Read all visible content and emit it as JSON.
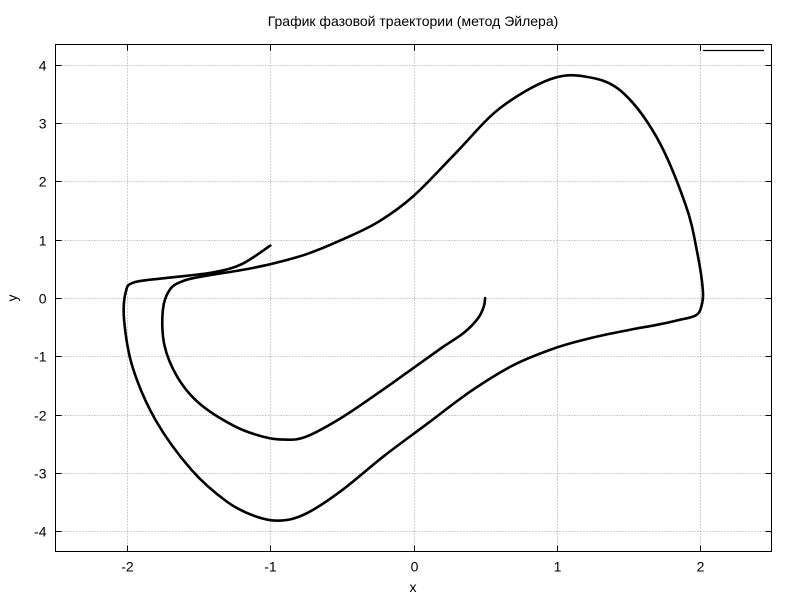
{
  "chart_data": {
    "type": "line",
    "title": "График фазовой траектории (метод Эйлера)",
    "xlabel": "x",
    "ylabel": "y",
    "xlim": [
      -2.5,
      2.5
    ],
    "ylim": [
      -4.35,
      4.35
    ],
    "xticks": [
      -2,
      -1,
      0,
      1,
      2
    ],
    "yticks": [
      -4,
      -3,
      -2,
      -1,
      0,
      1,
      2,
      3,
      4
    ],
    "grid": true,
    "legend": "top-right",
    "colors": {
      "line": "#000000",
      "grid": "#a0a0a0",
      "frame": "#000000"
    },
    "series": [
      {
        "name": "",
        "x": [
          0.5,
          0.49,
          0.45,
          0.35,
          0.2,
          0.0,
          -0.2,
          -0.5,
          -0.75,
          -0.9,
          -1.05,
          -1.25,
          -1.5,
          -1.65,
          -1.74,
          -1.75,
          -1.7,
          -1.6,
          -1.45,
          -1.2,
          -1.0,
          -0.75,
          -0.5,
          -0.25,
          0.0,
          0.3,
          0.6,
          0.95,
          1.2,
          1.45,
          1.7,
          1.9,
          1.98,
          2.02,
          2.01,
          1.97,
          1.85,
          1.7,
          1.5,
          1.25,
          1.0,
          0.7,
          0.4,
          0.1,
          -0.2,
          -0.5,
          -0.75,
          -0.93,
          -1.1,
          -1.3,
          -1.55,
          -1.8,
          -1.96,
          -2.02,
          -2.01,
          -1.95,
          -1.7,
          -1.4,
          -1.2,
          -1.0
        ],
        "y": [
          0.0,
          -0.15,
          -0.35,
          -0.6,
          -0.85,
          -1.2,
          -1.55,
          -2.05,
          -2.38,
          -2.43,
          -2.38,
          -2.2,
          -1.8,
          -1.35,
          -0.8,
          -0.2,
          0.15,
          0.3,
          0.38,
          0.48,
          0.58,
          0.75,
          1.0,
          1.3,
          1.75,
          2.5,
          3.25,
          3.75,
          3.8,
          3.55,
          2.75,
          1.6,
          0.8,
          0.15,
          -0.15,
          -0.3,
          -0.38,
          -0.46,
          -0.55,
          -0.68,
          -0.85,
          -1.15,
          -1.6,
          -2.15,
          -2.7,
          -3.3,
          -3.7,
          -3.82,
          -3.75,
          -3.5,
          -2.95,
          -2.1,
          -1.2,
          -0.4,
          0.1,
          0.27,
          0.35,
          0.44,
          0.58,
          0.9
        ]
      }
    ]
  }
}
